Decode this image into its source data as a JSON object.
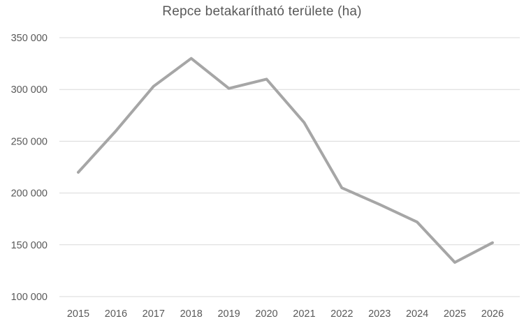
{
  "chart_data": {
    "type": "line",
    "title": "Repce betakarítható területe (ha)",
    "categories": [
      "2015",
      "2016",
      "2017",
      "2018",
      "2019",
      "2020",
      "2021",
      "2022",
      "2023",
      "2024",
      "2025",
      "2026"
    ],
    "series": [
      {
        "name": "Repce betakarítható területe (ha)",
        "values": [
          220000,
          260000,
          303000,
          330000,
          301000,
          310000,
          268000,
          205000,
          189000,
          172000,
          133000,
          152000
        ]
      }
    ],
    "xlabel": "",
    "ylabel": "",
    "ylim": [
      100000,
      350000
    ],
    "ytick_step": 50000,
    "ytick_values": [
      350000,
      300000,
      250000,
      200000,
      150000,
      100000
    ],
    "ytick_labels": [
      "350 000",
      "300 000",
      "250 000",
      "200 000",
      "150 000",
      "100 000"
    ],
    "grid": true,
    "legend_position": "none",
    "colors": {
      "line": "#a6a6a6",
      "grid": "#d9d9d9",
      "text": "#595959",
      "title": "#595959",
      "background": "#ffffff"
    }
  }
}
